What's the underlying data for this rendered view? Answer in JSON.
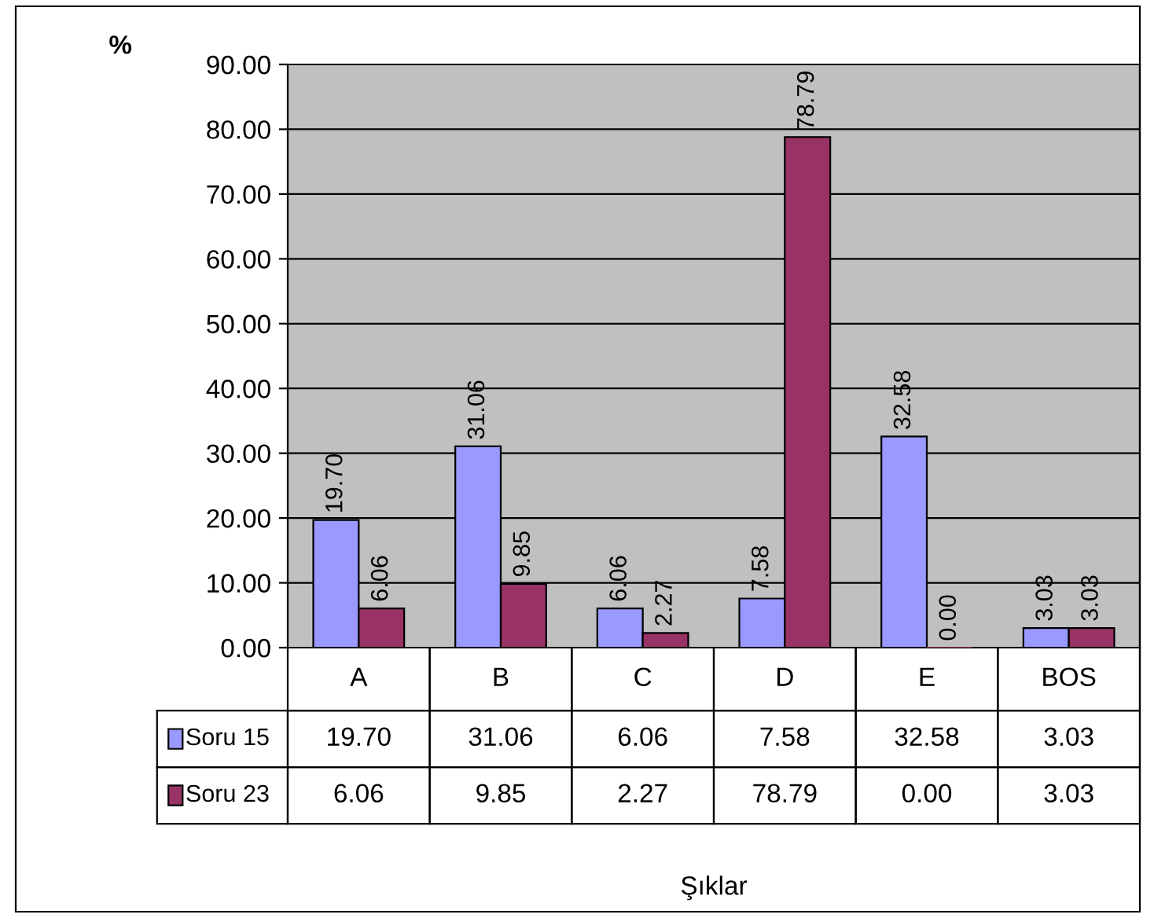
{
  "chart_data": {
    "type": "bar",
    "ylabel": "%",
    "annotations": [
      "Şıklar"
    ],
    "categories": [
      "A",
      "B",
      "C",
      "D",
      "E",
      "BOS"
    ],
    "series": [
      {
        "name": "Soru 15",
        "color": "#9999ff",
        "values": [
          19.7,
          31.06,
          6.06,
          7.58,
          32.58,
          3.03
        ],
        "value_labels": [
          "19.70",
          "31.06",
          "6.06",
          "7.58",
          "32.58",
          "3.03"
        ]
      },
      {
        "name": "Soru 23",
        "color": "#993366",
        "values": [
          6.06,
          9.85,
          2.27,
          78.79,
          0.0,
          3.03
        ],
        "value_labels": [
          "6.06",
          "9.85",
          "2.27",
          "78.79",
          "0.00",
          "3.03"
        ]
      }
    ],
    "ylim": [
      0,
      90
    ],
    "yticks": [
      {
        "value": 0,
        "label": "0.00"
      },
      {
        "value": 10,
        "label": "10.00"
      },
      {
        "value": 20,
        "label": "20.00"
      },
      {
        "value": 30,
        "label": "30.00"
      },
      {
        "value": 40,
        "label": "40.00"
      },
      {
        "value": 50,
        "label": "50.00"
      },
      {
        "value": 60,
        "label": "60.00"
      },
      {
        "value": 70,
        "label": "70.00"
      },
      {
        "value": 80,
        "label": "80.00"
      },
      {
        "value": 90,
        "label": "90.00"
      }
    ],
    "grid": "y",
    "legend": "bottom"
  }
}
